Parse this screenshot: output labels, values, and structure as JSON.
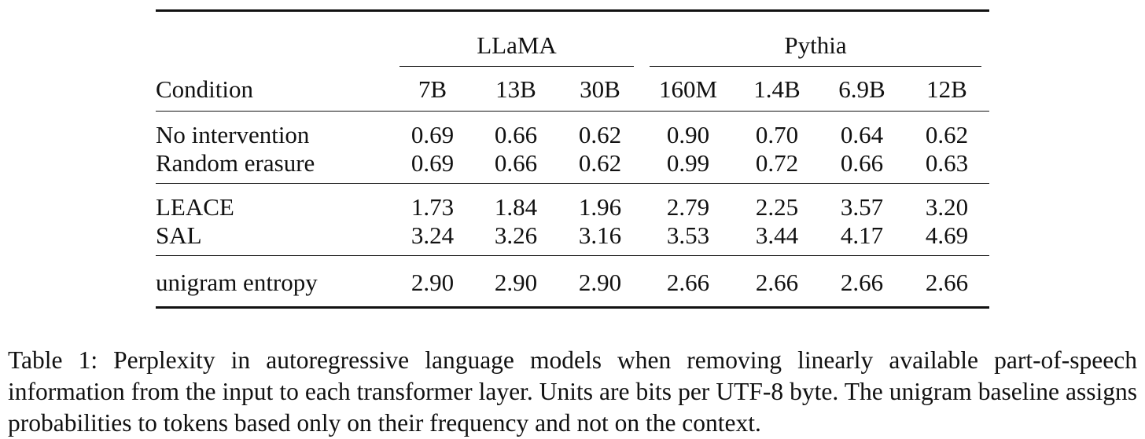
{
  "table": {
    "groups": [
      {
        "label": "LLaMA"
      },
      {
        "label": "Pythia"
      }
    ],
    "header": {
      "condition": "Condition",
      "columns": [
        "7B",
        "13B",
        "30B",
        "160M",
        "1.4B",
        "6.9B",
        "12B"
      ]
    },
    "sections": [
      {
        "rows": [
          {
            "label": "No intervention",
            "values": [
              "0.69",
              "0.66",
              "0.62",
              "0.90",
              "0.70",
              "0.64",
              "0.62"
            ]
          },
          {
            "label": "Random erasure",
            "values": [
              "0.69",
              "0.66",
              "0.62",
              "0.99",
              "0.72",
              "0.66",
              "0.63"
            ]
          }
        ]
      },
      {
        "rows": [
          {
            "label": "LEACE",
            "values": [
              "1.73",
              "1.84",
              "1.96",
              "2.79",
              "2.25",
              "3.57",
              "3.20"
            ]
          },
          {
            "label": "SAL",
            "values": [
              "3.24",
              "3.26",
              "3.16",
              "3.53",
              "3.44",
              "4.17",
              "4.69"
            ]
          }
        ]
      },
      {
        "rows": [
          {
            "label": "unigram entropy",
            "values": [
              "2.90",
              "2.90",
              "2.90",
              "2.66",
              "2.66",
              "2.66",
              "2.66"
            ]
          }
        ]
      }
    ]
  },
  "caption": "Table 1: Perplexity in autoregressive language models when removing linearly available part-of-speech information from the input to each transformer layer. Units are bits per UTF-8 byte. The unigram baseline assigns probabilities to tokens based only on their frequency and not on the context."
}
